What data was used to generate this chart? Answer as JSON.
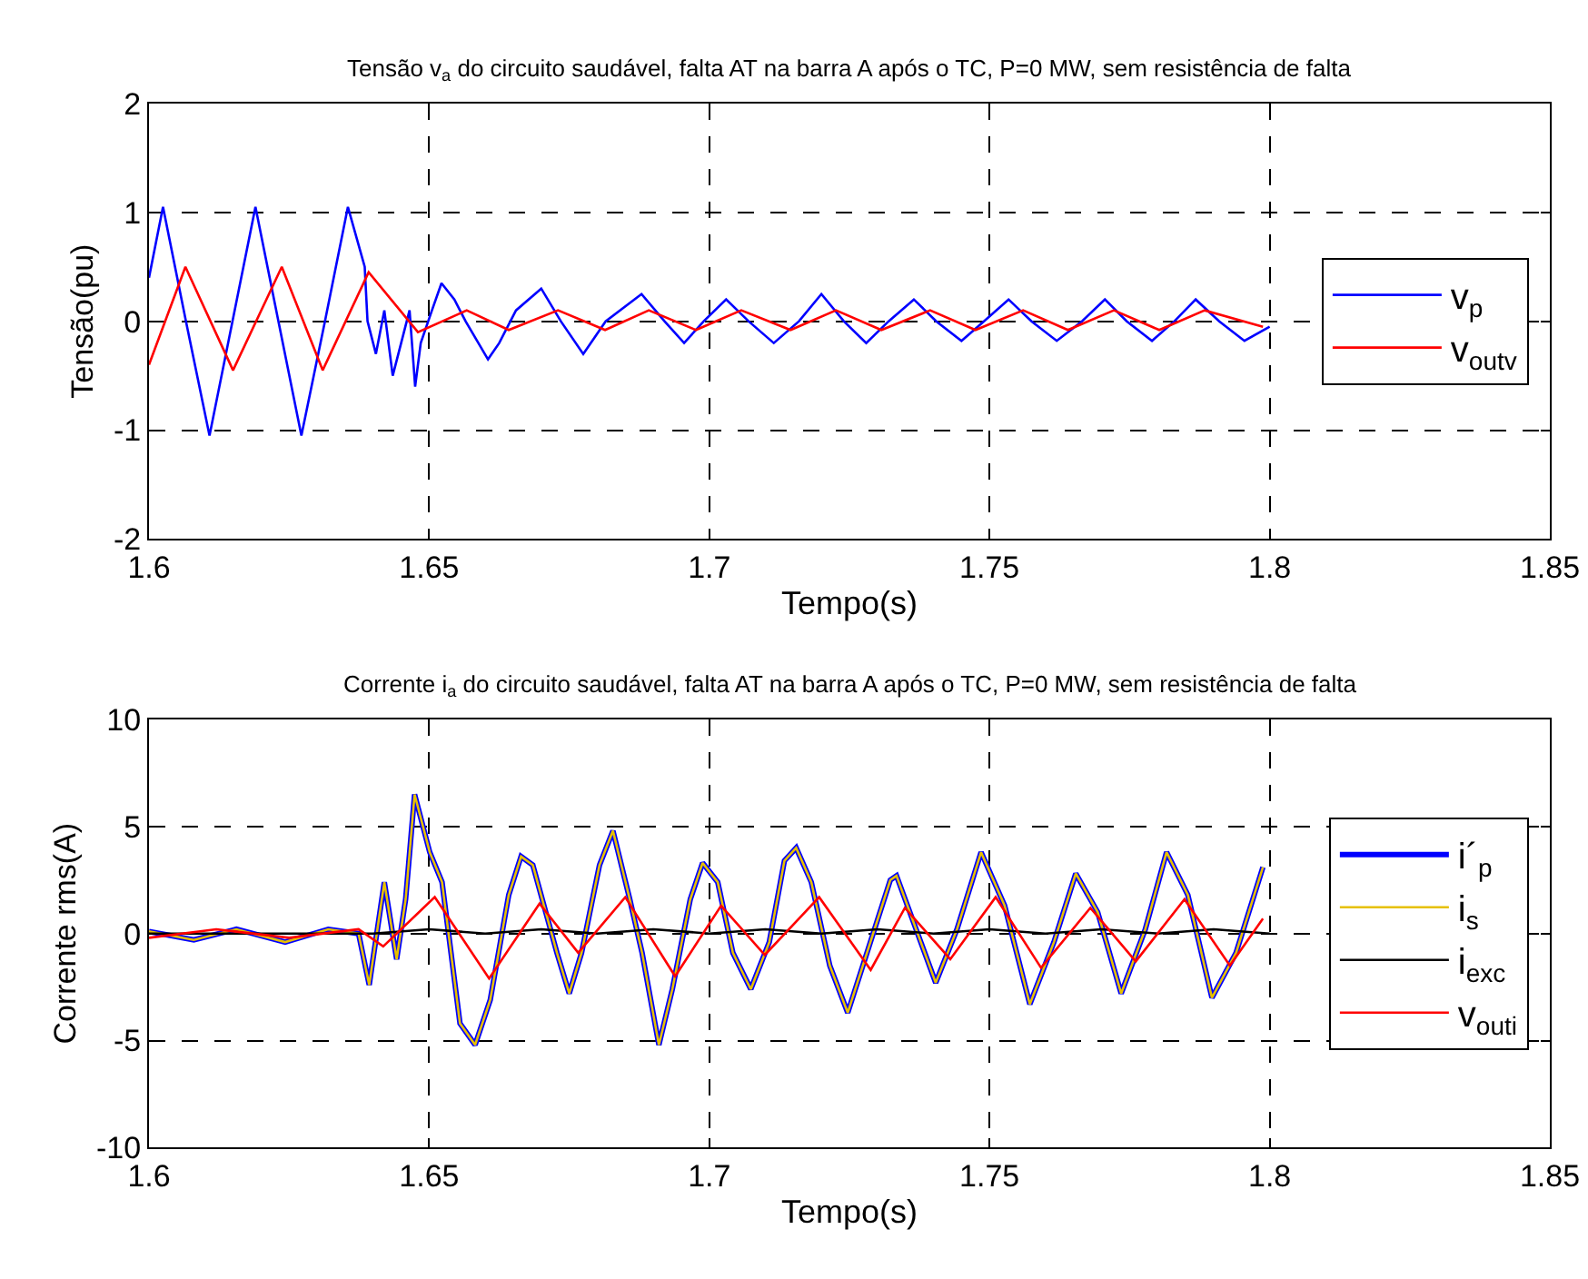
{
  "chart_data": [
    {
      "type": "line",
      "title": "Tensão v$_{a}$ do circuito saudável, falta AT na barra A após o TC, P=0 MW, sem resistência de falta",
      "xlabel": "Tempo(s)",
      "ylabel": "Tensão(pu)",
      "xlim": [
        1.6,
        1.85
      ],
      "xticks": [
        1.6,
        1.65,
        1.7,
        1.75,
        1.8,
        1.85
      ],
      "ylim": [
        -2,
        2
      ],
      "yticks": [
        -2,
        -1,
        0,
        1,
        2
      ],
      "grid": true,
      "legend": "right",
      "line_style": "solid",
      "series": [
        {
          "name": "v$_{p}$",
          "color": "#0000ff",
          "x": [
            1.6,
            1.6025,
            1.6066,
            1.6108,
            1.6149,
            1.619,
            1.6231,
            1.6272,
            1.6314,
            1.6355,
            1.6385,
            1.639,
            1.6405,
            1.642,
            1.6435,
            1.645,
            1.6465,
            1.6475,
            1.6485,
            1.6505,
            1.6522,
            1.6545,
            1.6565,
            1.6605,
            1.6625,
            1.6655,
            1.67,
            1.6735,
            1.6775,
            1.6815,
            1.6879,
            1.692,
            1.6955,
            1.699,
            1.703,
            1.707,
            1.7115,
            1.716,
            1.72,
            1.724,
            1.728,
            1.732,
            1.7365,
            1.7405,
            1.745,
            1.749,
            1.7534,
            1.7575,
            1.762,
            1.7665,
            1.7706,
            1.7745,
            1.779,
            1.783,
            1.7868,
            1.791,
            1.7955,
            1.8
          ],
          "values": [
            0.4,
            1.05,
            0,
            -1.05,
            0,
            1.05,
            0,
            -1.05,
            0,
            1.05,
            0.5,
            0,
            -0.3,
            0.1,
            -0.5,
            -0.2,
            0.1,
            -0.6,
            -0.2,
            0.1,
            0.35,
            0.2,
            0,
            -0.35,
            -0.2,
            0.1,
            0.3,
            0,
            -0.3,
            0,
            0.25,
            0,
            -0.2,
            0,
            0.2,
            0,
            -0.2,
            0,
            0.25,
            0,
            -0.2,
            0,
            0.2,
            0,
            -0.18,
            0,
            0.2,
            0,
            -0.18,
            0,
            0.2,
            0,
            -0.18,
            0,
            0.2,
            0,
            -0.18,
            -0.05
          ]
        },
        {
          "name": "v$_{outv}$",
          "color": "#ff0000",
          "x": [
            1.6,
            1.6065,
            1.615,
            1.6237,
            1.631,
            1.6392,
            1.648,
            1.6567,
            1.6642,
            1.673,
            1.6814,
            1.6892,
            1.6976,
            1.7057,
            1.7145,
            1.7226,
            1.7307,
            1.7394,
            1.7475,
            1.756,
            1.764,
            1.7722,
            1.7803,
            1.7884,
            1.7988
          ],
          "values": [
            -0.4,
            0.5,
            -0.45,
            0.5,
            -0.45,
            0.45,
            -0.1,
            0.1,
            -0.08,
            0.1,
            -0.08,
            0.1,
            -0.08,
            0.1,
            -0.08,
            0.1,
            -0.08,
            0.1,
            -0.08,
            0.1,
            -0.08,
            0.1,
            -0.08,
            0.1,
            -0.05
          ]
        }
      ]
    },
    {
      "type": "line",
      "title": "Corrente i$_{a}$ do circuito saudável, falta AT na barra A após o TC, P=0 MW, sem resistência de falta",
      "xlabel": "Tempo(s)",
      "ylabel": "Corrente rms(A)",
      "xlim": [
        1.6,
        1.85
      ],
      "xticks": [
        1.6,
        1.65,
        1.7,
        1.75,
        1.8,
        1.85
      ],
      "ylim": [
        -10,
        10
      ],
      "yticks": [
        -10,
        -5,
        0,
        5,
        10
      ],
      "grid": true,
      "legend": "right",
      "line_style": "solid",
      "series": [
        {
          "name": "i´$_{p}$",
          "color": "#0000ff",
          "x": [
            1.6,
            1.608,
            1.6156,
            1.6243,
            1.632,
            1.6374,
            1.6393,
            1.642,
            1.6442,
            1.6458,
            1.6474,
            1.6501,
            1.6523,
            1.6555,
            1.6582,
            1.6609,
            1.6642,
            1.6664,
            1.6685,
            1.6728,
            1.675,
            1.6772,
            1.6804,
            1.6828,
            1.6858,
            1.688,
            1.691,
            1.6934,
            1.6966,
            1.6988,
            1.7015,
            1.7042,
            1.7074,
            1.7107,
            1.7134,
            1.7155,
            1.7182,
            1.7215,
            1.7247,
            1.7323,
            1.7334,
            1.7404,
            1.7442,
            1.7485,
            1.7527,
            1.7572,
            1.7615,
            1.7654,
            1.7693,
            1.7735,
            1.7778,
            1.7816,
            1.7854,
            1.7897,
            1.794,
            1.7988
          ],
          "values": [
            0.1,
            -0.3,
            0.2,
            -0.4,
            0.2,
            0,
            -2.4,
            2.4,
            -1.2,
            1.6,
            6.5,
            3.8,
            2.4,
            -4.2,
            -5.2,
            -3.1,
            1.8,
            3.6,
            3.2,
            -0.9,
            -2.8,
            -0.9,
            3.2,
            4.8,
            1.6,
            -0.9,
            -5.2,
            -2.6,
            1.6,
            3.3,
            2.4,
            -0.9,
            -2.6,
            -0.4,
            3.4,
            4.0,
            2.4,
            -1.5,
            -3.7,
            2.5,
            2.7,
            -2.3,
            0.2,
            3.8,
            1.3,
            -3.3,
            -0.4,
            2.8,
            1.0,
            -2.8,
            0.2,
            3.8,
            1.8,
            -3.0,
            -0.9,
            3.1
          ]
        },
        {
          "name": "i$_{s}$",
          "color": "#e6c000",
          "x": [
            1.6,
            1.608,
            1.6156,
            1.6243,
            1.632,
            1.6374,
            1.6393,
            1.642,
            1.6442,
            1.6458,
            1.6474,
            1.6501,
            1.6523,
            1.6555,
            1.6582,
            1.6609,
            1.6642,
            1.6664,
            1.6685,
            1.6728,
            1.675,
            1.6772,
            1.6804,
            1.6828,
            1.6858,
            1.688,
            1.691,
            1.6934,
            1.6966,
            1.6988,
            1.7015,
            1.7042,
            1.7074,
            1.7107,
            1.7134,
            1.7155,
            1.7182,
            1.7215,
            1.7247,
            1.7323,
            1.7334,
            1.7404,
            1.7442,
            1.7485,
            1.7527,
            1.7572,
            1.7615,
            1.7654,
            1.7693,
            1.7735,
            1.7778,
            1.7816,
            1.7854,
            1.7897,
            1.794,
            1.7988
          ],
          "values": [
            0.1,
            -0.3,
            0.2,
            -0.4,
            0.2,
            0,
            -2.4,
            2.4,
            -1.2,
            1.6,
            6.5,
            3.8,
            2.4,
            -4.2,
            -5.2,
            -3.1,
            1.8,
            3.6,
            3.2,
            -0.9,
            -2.8,
            -0.9,
            3.2,
            4.8,
            1.6,
            -0.9,
            -5.2,
            -2.6,
            1.6,
            3.3,
            2.4,
            -0.9,
            -2.6,
            -0.4,
            3.4,
            4.0,
            2.4,
            -1.5,
            -3.7,
            2.5,
            2.7,
            -2.3,
            0.2,
            3.8,
            1.3,
            -3.3,
            -0.4,
            2.8,
            1.0,
            -2.8,
            0.2,
            3.8,
            1.8,
            -3.0,
            -0.9,
            3.1
          ]
        },
        {
          "name": "i$_{exc}$",
          "color": "#000000",
          "x": [
            1.6,
            1.64,
            1.65,
            1.66,
            1.67,
            1.68,
            1.69,
            1.7,
            1.71,
            1.72,
            1.73,
            1.74,
            1.75,
            1.76,
            1.77,
            1.78,
            1.79,
            1.8
          ],
          "values": [
            0,
            0,
            0.2,
            0,
            0.2,
            0,
            0.2,
            0,
            0.2,
            0,
            0.2,
            0,
            0.2,
            0,
            0.2,
            0,
            0.2,
            0
          ]
        },
        {
          "name": "v$_{outi}$",
          "color": "#ff0000",
          "x": [
            1.6,
            1.612,
            1.625,
            1.6374,
            1.6418,
            1.651,
            1.6607,
            1.6697,
            1.6766,
            1.685,
            1.6939,
            1.7021,
            1.7099,
            1.7196,
            1.7288,
            1.7349,
            1.743,
            1.7511,
            1.7592,
            1.768,
            1.7761,
            1.7848,
            1.7929,
            1.7988
          ],
          "values": [
            -0.2,
            0.2,
            -0.2,
            0.2,
            -0.6,
            1.7,
            -2.1,
            1.4,
            -0.9,
            1.7,
            -2.0,
            1.3,
            -1.0,
            1.7,
            -1.7,
            1.2,
            -1.2,
            1.7,
            -1.6,
            1.2,
            -1.3,
            1.6,
            -1.5,
            0.7
          ]
        }
      ]
    }
  ]
}
